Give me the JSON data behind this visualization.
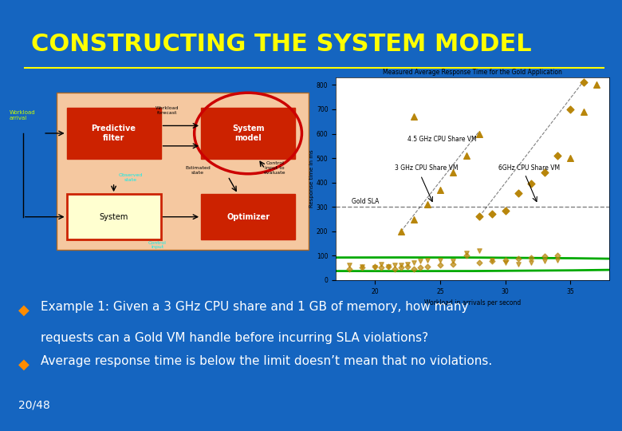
{
  "title": "CONSTRUCTING THE SYSTEM MODEL",
  "title_color": "#FFFF00",
  "background_color": "#1565C0",
  "bullet1_line1": "Example 1: Given a 3 GHz CPU share and 1 GB of memory, how many",
  "bullet1_line2": "requests can a Gold VM handle before incurring SLA violations?",
  "bullet2": "Average response time is below the limit doesn’t mean that no violations.",
  "bullet_color": "#FFFFFF",
  "bullet_symbol_color": "#FF8C00",
  "page_number": "20/48",
  "diagram": {
    "outer_facecolor": "#F5C8A0",
    "box_red": "#CC2200",
    "border_red": "#CC2200",
    "text_white": "#FFFFFF",
    "text_black": "#000000",
    "circle_color": "#CC0000"
  },
  "chart": {
    "title": "Measured Average Response Time for the Gold Application",
    "xlabel": "Workload in arrivals per second",
    "ylabel": "Response time in ms",
    "scatter_color": "#B8860B",
    "sla_line_y": 300,
    "sla_label": "Gold SLA",
    "label_45ghz": "4.5 GHz CPU Share VM",
    "label_3ghz": "3 GHz CPU Share VM",
    "label_6ghz": "6GHz CPU Share VM",
    "circle_color": "#00AA00",
    "yticks": [
      0,
      100,
      200,
      300,
      400,
      500,
      600,
      700,
      800
    ],
    "xticks": [
      20,
      25,
      30,
      35
    ]
  }
}
